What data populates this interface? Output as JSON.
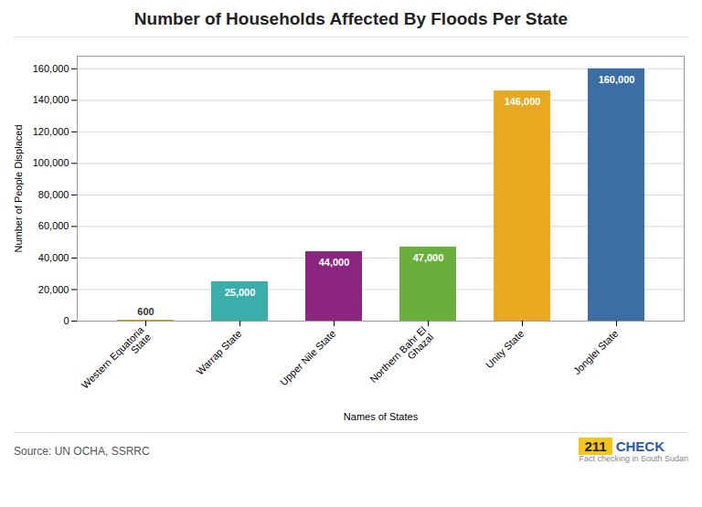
{
  "chart_data": {
    "type": "bar",
    "title": "Number of Households Affected By Floods Per State",
    "categories": [
      "Western Equatoria\nState",
      "Warrap State",
      "Upper Nile State",
      "Northern Bahr El\nGhazal",
      "Unity State",
      "Jonglei State"
    ],
    "values": [
      600,
      25000,
      44000,
      47000,
      146000,
      160000
    ],
    "colors": [
      "#C8A020",
      "#3AAFA9",
      "#8B2580",
      "#6AAF3D",
      "#E8A820",
      "#3A6EA5"
    ],
    "value_labels": [
      "600",
      "25,000",
      "44,000",
      "47,000",
      "146,000",
      "160,000"
    ],
    "data_labels": true,
    "xlabel": "Names of States",
    "ylabel": "Number of People Displaced",
    "ylim": [
      0,
      168000
    ],
    "yticks": [
      0,
      {
        "value": 20000,
        "label": "20,000"
      },
      {
        "value": 40000,
        "label": "40,000"
      },
      {
        "value": 60000,
        "label": "60,000"
      },
      {
        "value": 80000,
        "label": "80,000"
      },
      {
        "value": 100000,
        "label": "100,000"
      },
      {
        "value": 120000,
        "label": "120,000"
      },
      {
        "value": 140000,
        "label": "140,000"
      },
      {
        "value": 160000,
        "label": "160,000"
      }
    ],
    "grid": true,
    "caption": "Source: UN OCHA, SSRRC",
    "annotations": [
      {
        "text": "211",
        "background": "#F5C518"
      },
      {
        "text": "CHECK",
        "color": "#2A5BA8"
      },
      {
        "text": "Fact checking in South Sudan"
      }
    ]
  }
}
